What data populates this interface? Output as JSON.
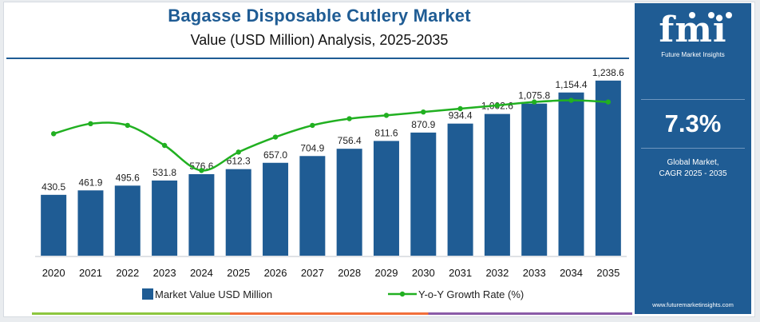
{
  "header": {
    "title": "Bagasse Disposable Cutlery Market",
    "subtitle": "Value (USD Million) Analysis, 2025-2035"
  },
  "side_panel": {
    "logo": "fmi",
    "logo_tagline": "Future Market Insights",
    "cagr_value": "7.3%",
    "cagr_label_line1": "Global Market,",
    "cagr_label_line2": "CAGR 2025 - 2035",
    "website": "www.futuremarketinsights.com"
  },
  "colors": {
    "bar": "#1f5c94",
    "line": "#21b021",
    "title": "#1f5c94",
    "panel": "#1f5c94"
  },
  "chart_data": {
    "type": "bar",
    "categories": [
      "2020",
      "2021",
      "2022",
      "2023",
      "2024",
      "2025",
      "2026",
      "2027",
      "2028",
      "2029",
      "2030",
      "2031",
      "2032",
      "2033",
      "2034",
      "2035"
    ],
    "series": [
      {
        "name": "Market Value USD Million",
        "type": "bar",
        "values": [
          430.5,
          461.9,
          495.6,
          531.8,
          576.6,
          612.3,
          657.0,
          704.9,
          756.4,
          811.6,
          870.9,
          934.4,
          1002.6,
          1075.8,
          1154.4,
          1238.6
        ],
        "labels": [
          "430.5",
          "461.9",
          "495.6",
          "531.8",
          "576.6",
          "612.3",
          "657.0",
          "704.9",
          "756.4",
          "811.6",
          "870.9",
          "934.4",
          "1,002.6",
          "1,075.8",
          "1,154.4",
          "1,238.6"
        ]
      },
      {
        "name": "Y-o-Y Growth Rate (%)",
        "type": "line",
        "values": [
          7.3,
          7.9,
          7.8,
          6.6,
          5.1,
          6.2,
          7.1,
          7.8,
          8.2,
          8.4,
          8.6,
          8.8,
          9.0,
          9.2,
          9.3,
          9.2
        ]
      }
    ],
    "ylim": [
      0,
      1300
    ],
    "y2lim": [
      0,
      11
    ],
    "legend": "bottom",
    "grid": false
  }
}
